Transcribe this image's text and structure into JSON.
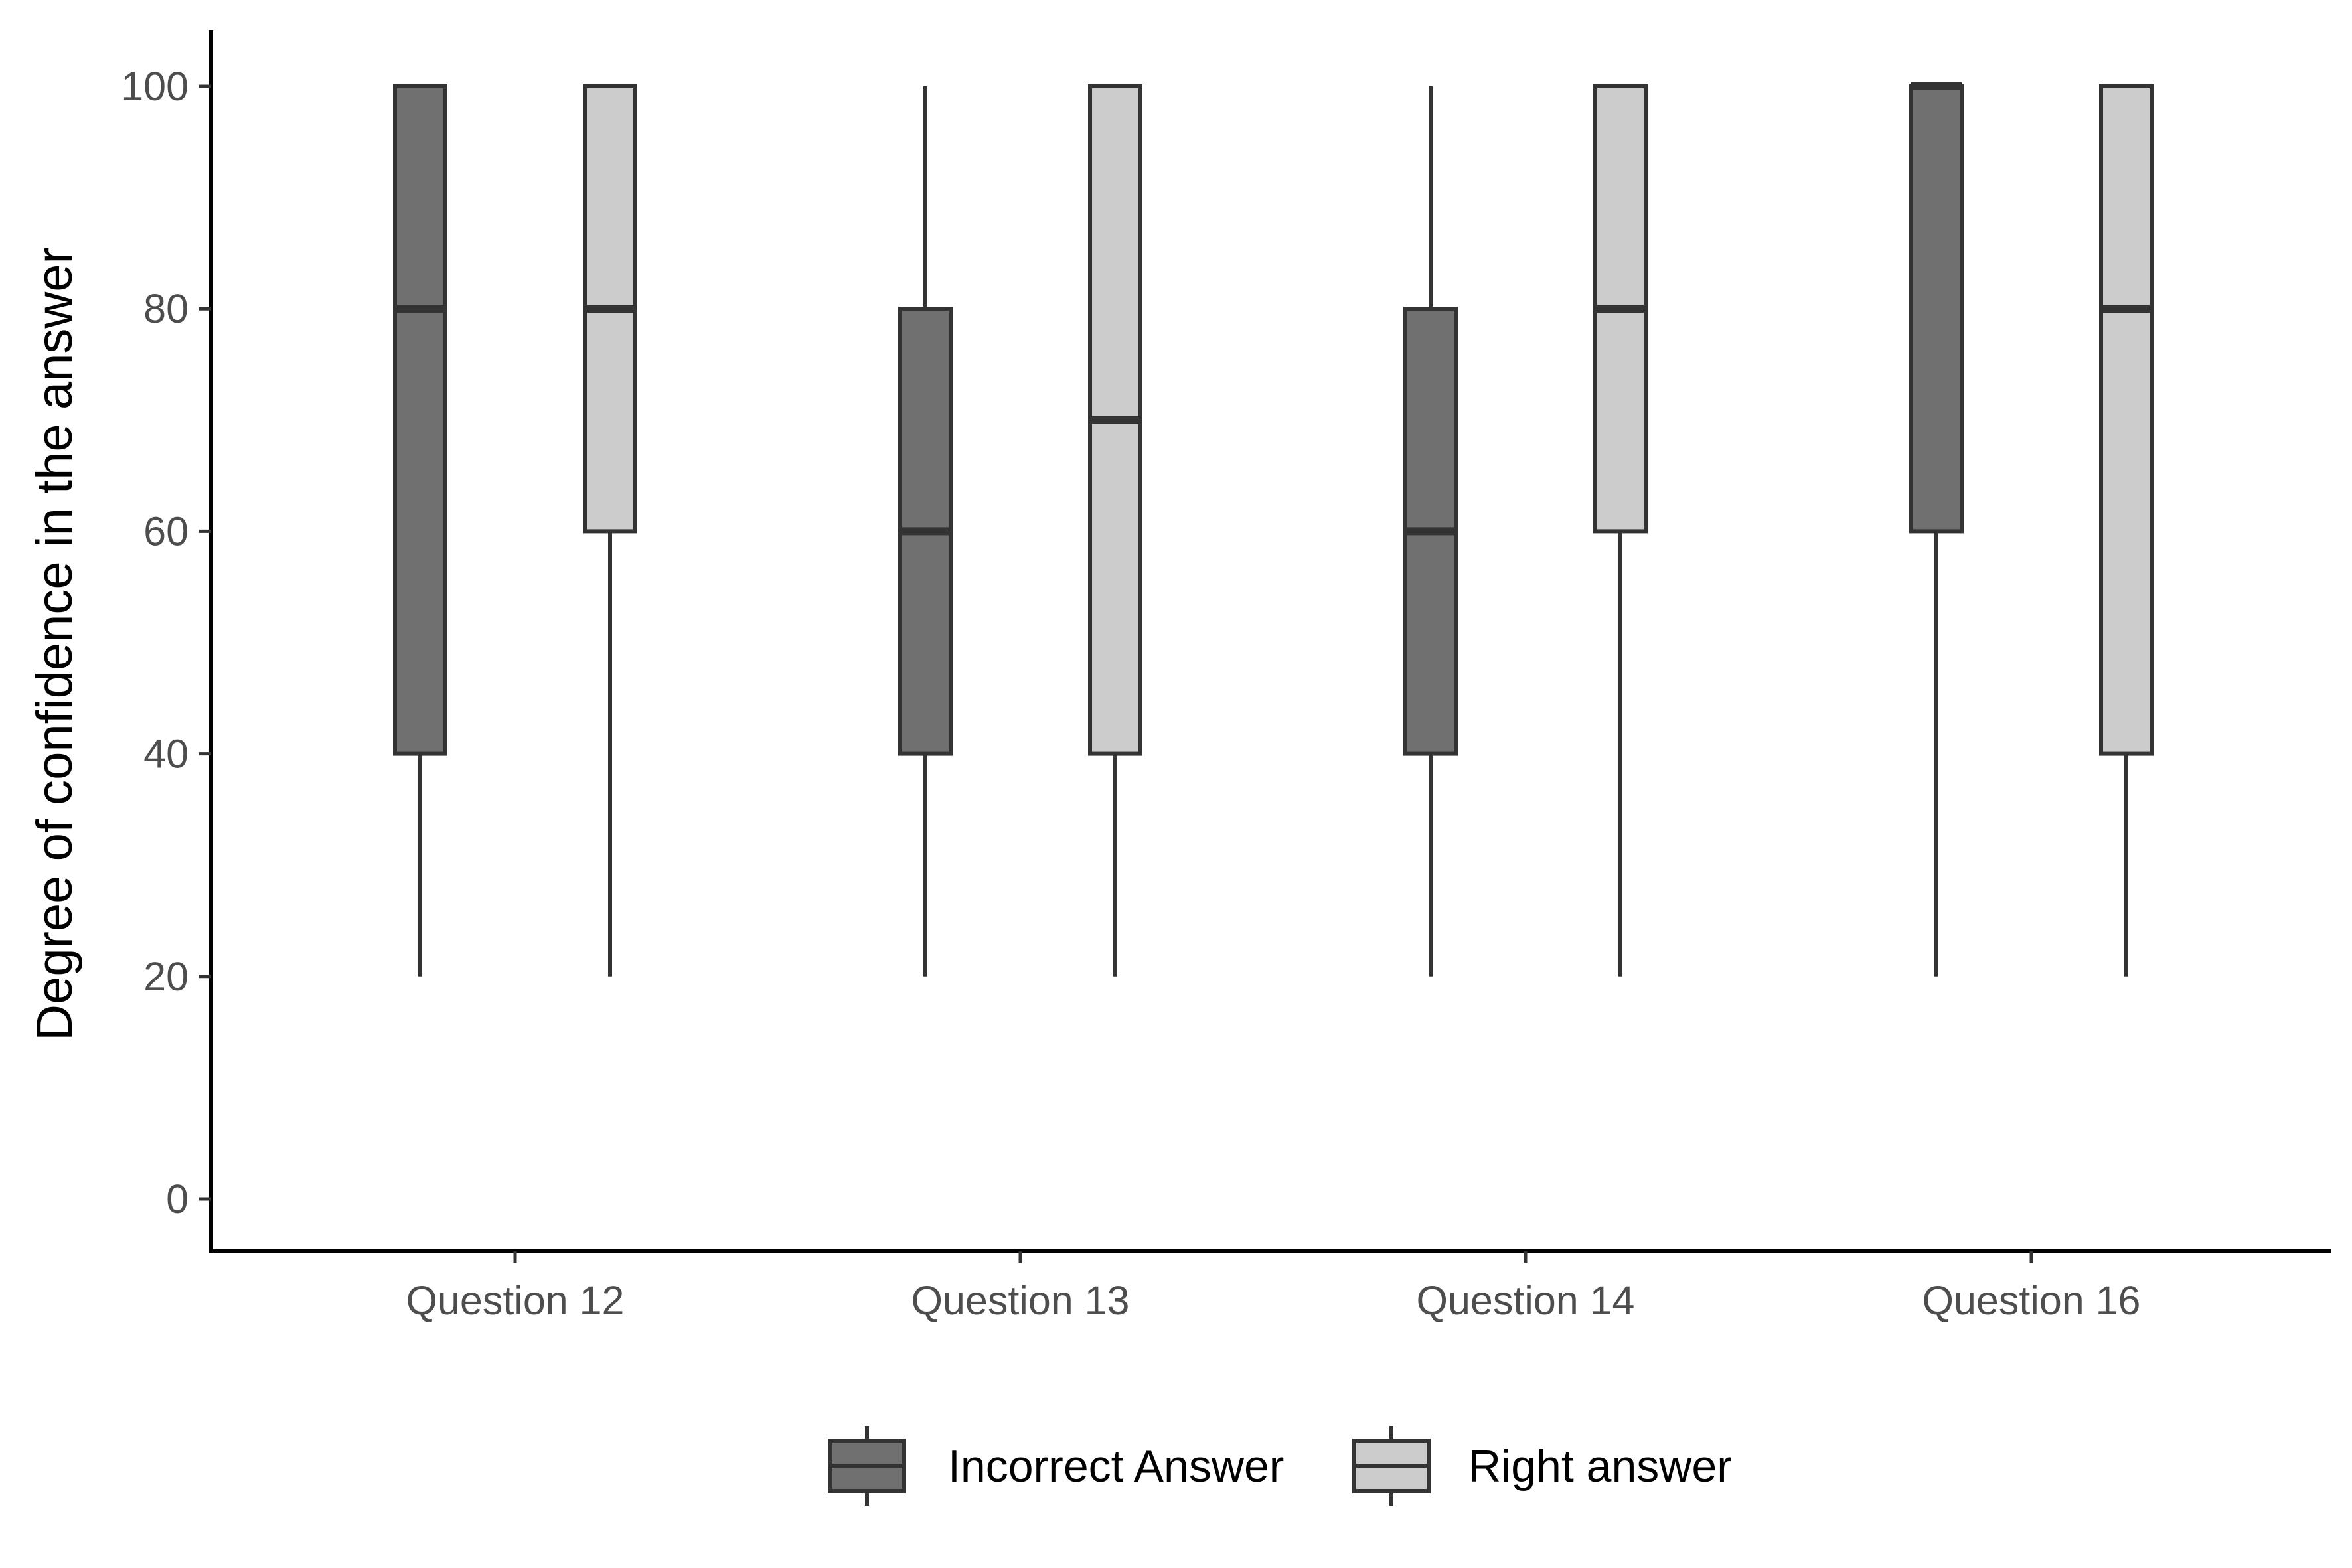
{
  "chart_data": {
    "type": "boxplot",
    "title": "",
    "xlabel": "",
    "ylabel": "Degree of confidence in the answer",
    "ylim": [
      -5,
      105
    ],
    "yticks": [
      0,
      20,
      40,
      60,
      80,
      100
    ],
    "grid": false,
    "legend_position": "bottom",
    "categories": [
      "Question 12",
      "Question 13",
      "Question 14",
      "Question 16"
    ],
    "series": [
      {
        "name": "Incorrect Answer",
        "color": "#707070",
        "boxes": [
          {
            "min": 20,
            "q1": 40,
            "median": 80,
            "q3": 100,
            "max": 100
          },
          {
            "min": 20,
            "q1": 40,
            "median": 60,
            "q3": 80,
            "max": 100
          },
          {
            "min": 20,
            "q1": 40,
            "median": 60,
            "q3": 80,
            "max": 100
          },
          {
            "min": 20,
            "q1": 60,
            "median": 100,
            "q3": 100,
            "max": 100
          }
        ]
      },
      {
        "name": "Right answer",
        "color": "#cccccc",
        "boxes": [
          {
            "min": 20,
            "q1": 60,
            "median": 80,
            "q3": 100,
            "max": 100
          },
          {
            "min": 20,
            "q1": 40,
            "median": 70,
            "q3": 100,
            "max": 100
          },
          {
            "min": 20,
            "q1": 60,
            "median": 80,
            "q3": 100,
            "max": 100
          },
          {
            "min": 20,
            "q1": 40,
            "median": 80,
            "q3": 100,
            "max": 100
          }
        ]
      }
    ],
    "stroke_color": "#333333"
  }
}
